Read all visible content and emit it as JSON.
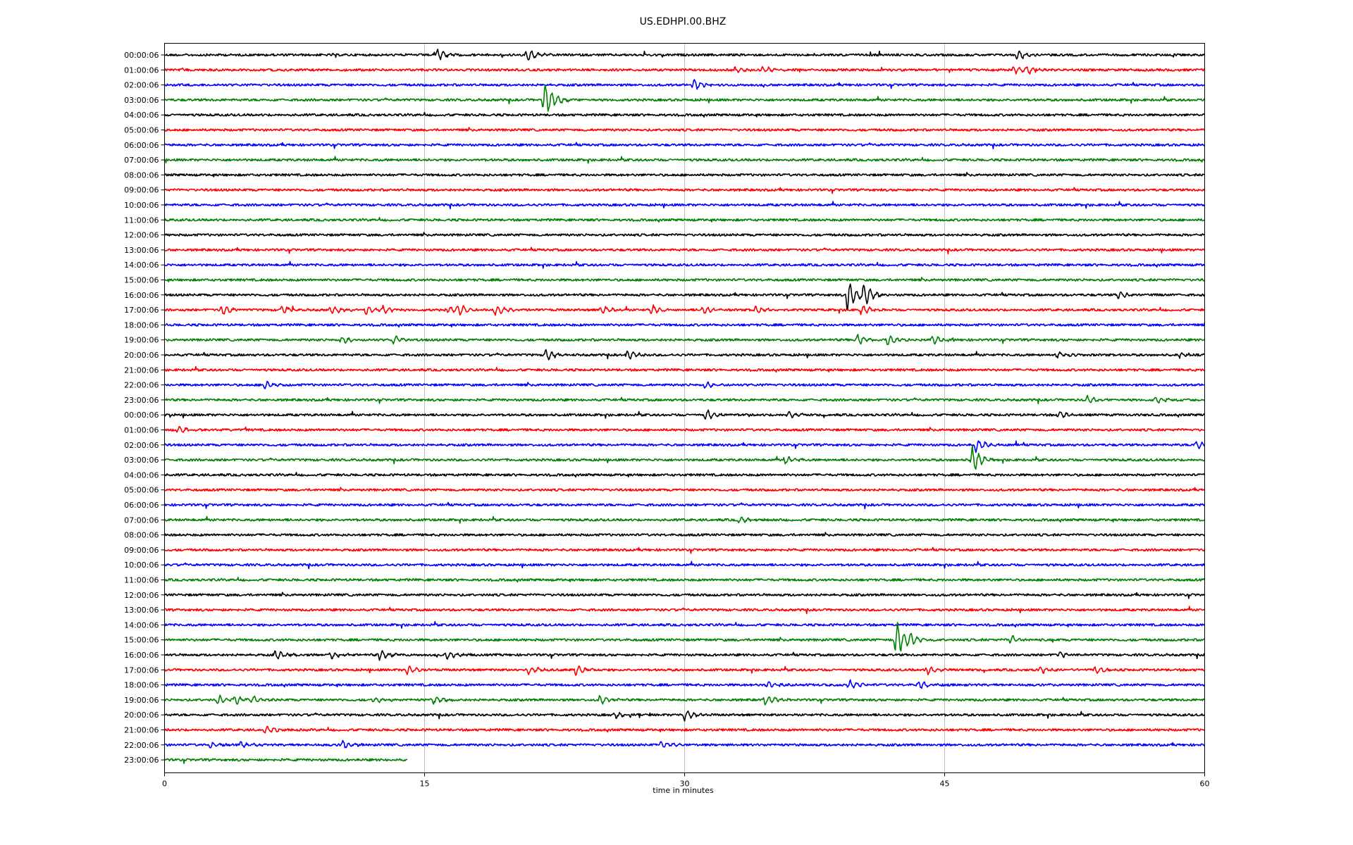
{
  "chart_data": {
    "type": "line",
    "title": "US.EDHPI.00.BHZ",
    "xlabel": "time in minutes",
    "ylabel": "",
    "xlim": [
      0,
      60
    ],
    "xticks": [
      "0",
      "15",
      "30",
      "45",
      "60"
    ],
    "grid": "vertical",
    "color_cycle": [
      "#000000",
      "#ff0000",
      "#0000ff",
      "#008000"
    ],
    "rows": [
      {
        "label": "00:00:06",
        "color": "#000000",
        "end_minute": 60,
        "events": [
          {
            "minute": 15.7,
            "amp": 0.45
          },
          {
            "minute": 20.9,
            "amp": 0.55
          },
          {
            "minute": 49.2,
            "amp": 0.4
          }
        ]
      },
      {
        "label": "01:00:06",
        "color": "#ff0000",
        "end_minute": 60,
        "events": [
          {
            "minute": 32.9,
            "amp": 0.3
          },
          {
            "minute": 34.5,
            "amp": 0.3
          },
          {
            "minute": 49.0,
            "amp": 0.35
          },
          {
            "minute": 49.8,
            "amp": 0.35
          }
        ]
      },
      {
        "label": "02:00:06",
        "color": "#0000ff",
        "end_minute": 60,
        "events": [
          {
            "minute": 30.5,
            "amp": 0.45
          }
        ]
      },
      {
        "label": "03:00:06",
        "color": "#008000",
        "end_minute": 60,
        "events": [
          {
            "minute": 21.9,
            "amp": 1.6
          }
        ]
      },
      {
        "label": "04:00:06",
        "color": "#000000",
        "end_minute": 60,
        "events": []
      },
      {
        "label": "05:00:06",
        "color": "#ff0000",
        "end_minute": 60,
        "events": []
      },
      {
        "label": "06:00:06",
        "color": "#0000ff",
        "end_minute": 60,
        "events": []
      },
      {
        "label": "07:00:06",
        "color": "#008000",
        "end_minute": 60,
        "events": []
      },
      {
        "label": "08:00:06",
        "color": "#000000",
        "end_minute": 60,
        "events": []
      },
      {
        "label": "09:00:06",
        "color": "#ff0000",
        "end_minute": 60,
        "events": []
      },
      {
        "label": "10:00:06",
        "color": "#0000ff",
        "end_minute": 60,
        "events": []
      },
      {
        "label": "11:00:06",
        "color": "#008000",
        "end_minute": 60,
        "events": []
      },
      {
        "label": "12:00:06",
        "color": "#000000",
        "end_minute": 60,
        "events": []
      },
      {
        "label": "13:00:06",
        "color": "#ff0000",
        "end_minute": 60,
        "events": []
      },
      {
        "label": "14:00:06",
        "color": "#0000ff",
        "end_minute": 60,
        "events": []
      },
      {
        "label": "15:00:06",
        "color": "#008000",
        "end_minute": 60,
        "events": []
      },
      {
        "label": "16:00:06",
        "color": "#000000",
        "end_minute": 60,
        "events": [
          {
            "minute": 39.4,
            "amp": 1.3
          },
          {
            "minute": 40.3,
            "amp": 0.9
          },
          {
            "minute": 55.0,
            "amp": 0.3
          }
        ]
      },
      {
        "label": "17:00:06",
        "color": "#ff0000",
        "end_minute": 60,
        "events": [
          {
            "minute": 3.3,
            "amp": 0.4
          },
          {
            "minute": 6.8,
            "amp": 0.3
          },
          {
            "minute": 9.6,
            "amp": 0.35
          },
          {
            "minute": 11.6,
            "amp": 0.35
          },
          {
            "minute": 12.6,
            "amp": 0.35
          },
          {
            "minute": 16.4,
            "amp": 0.35
          },
          {
            "minute": 17.0,
            "amp": 0.4
          },
          {
            "minute": 19.1,
            "amp": 0.5
          },
          {
            "minute": 25.2,
            "amp": 0.35
          },
          {
            "minute": 28.1,
            "amp": 0.4
          },
          {
            "minute": 31.1,
            "amp": 0.35
          },
          {
            "minute": 34.1,
            "amp": 0.35
          },
          {
            "minute": 40.2,
            "amp": 0.4
          }
        ]
      },
      {
        "label": "18:00:06",
        "color": "#0000ff",
        "end_minute": 60,
        "events": []
      },
      {
        "label": "19:00:06",
        "color": "#008000",
        "end_minute": 60,
        "events": [
          {
            "minute": 10.2,
            "amp": 0.35
          },
          {
            "minute": 13.2,
            "amp": 0.4
          },
          {
            "minute": 40.0,
            "amp": 0.4
          },
          {
            "minute": 41.7,
            "amp": 0.45
          },
          {
            "minute": 44.3,
            "amp": 0.4
          }
        ]
      },
      {
        "label": "20:00:06",
        "color": "#000000",
        "end_minute": 60,
        "events": [
          {
            "minute": 22.0,
            "amp": 0.45
          },
          {
            "minute": 26.7,
            "amp": 0.45
          },
          {
            "minute": 51.5,
            "amp": 0.25
          },
          {
            "minute": 58.5,
            "amp": 0.25
          }
        ]
      },
      {
        "label": "21:00:06",
        "color": "#ff0000",
        "end_minute": 60,
        "events": []
      },
      {
        "label": "22:00:06",
        "color": "#0000ff",
        "end_minute": 60,
        "events": [
          {
            "minute": 5.8,
            "amp": 0.35
          },
          {
            "minute": 31.2,
            "amp": 0.3
          }
        ]
      },
      {
        "label": "23:00:06",
        "color": "#008000",
        "end_minute": 60,
        "events": [
          {
            "minute": 53.2,
            "amp": 0.35
          },
          {
            "minute": 57.2,
            "amp": 0.35
          }
        ]
      },
      {
        "label": "00:00:06",
        "color": "#000000",
        "end_minute": 60,
        "events": [
          {
            "minute": 31.2,
            "amp": 0.45
          },
          {
            "minute": 36.0,
            "amp": 0.3
          },
          {
            "minute": 51.6,
            "amp": 0.35
          }
        ]
      },
      {
        "label": "01:00:06",
        "color": "#ff0000",
        "end_minute": 60,
        "events": [
          {
            "minute": 0.8,
            "amp": 0.35
          }
        ]
      },
      {
        "label": "02:00:06",
        "color": "#0000ff",
        "end_minute": 60,
        "events": [
          {
            "minute": 46.8,
            "amp": 0.6
          },
          {
            "minute": 59.5,
            "amp": 0.35
          }
        ]
      },
      {
        "label": "03:00:06",
        "color": "#008000",
        "end_minute": 60,
        "events": [
          {
            "minute": 35.8,
            "amp": 0.35
          },
          {
            "minute": 46.6,
            "amp": 1.1
          }
        ]
      },
      {
        "label": "04:00:06",
        "color": "#000000",
        "end_minute": 60,
        "events": []
      },
      {
        "label": "05:00:06",
        "color": "#ff0000",
        "end_minute": 60,
        "events": []
      },
      {
        "label": "06:00:06",
        "color": "#0000ff",
        "end_minute": 60,
        "events": []
      },
      {
        "label": "07:00:06",
        "color": "#008000",
        "end_minute": 60,
        "events": [
          {
            "minute": 33.2,
            "amp": 0.3
          }
        ]
      },
      {
        "label": "08:00:06",
        "color": "#000000",
        "end_minute": 60,
        "events": []
      },
      {
        "label": "09:00:06",
        "color": "#ff0000",
        "end_minute": 60,
        "events": []
      },
      {
        "label": "10:00:06",
        "color": "#0000ff",
        "end_minute": 60,
        "events": []
      },
      {
        "label": "11:00:06",
        "color": "#008000",
        "end_minute": 60,
        "events": []
      },
      {
        "label": "12:00:06",
        "color": "#000000",
        "end_minute": 60,
        "events": []
      },
      {
        "label": "13:00:06",
        "color": "#ff0000",
        "end_minute": 60,
        "events": []
      },
      {
        "label": "14:00:06",
        "color": "#0000ff",
        "end_minute": 60,
        "events": []
      },
      {
        "label": "15:00:06",
        "color": "#008000",
        "end_minute": 60,
        "events": [
          {
            "minute": 42.2,
            "amp": 1.4
          },
          {
            "minute": 43.0,
            "amp": 0.4
          },
          {
            "minute": 48.8,
            "amp": 0.4
          }
        ]
      },
      {
        "label": "16:00:06",
        "color": "#000000",
        "end_minute": 60,
        "events": [
          {
            "minute": 6.4,
            "amp": 0.4
          },
          {
            "minute": 9.6,
            "amp": 0.3
          },
          {
            "minute": 12.4,
            "amp": 0.4
          },
          {
            "minute": 16.3,
            "amp": 0.35
          },
          {
            "minute": 51.6,
            "amp": 0.3
          }
        ]
      },
      {
        "label": "17:00:06",
        "color": "#ff0000",
        "end_minute": 60,
        "events": [
          {
            "minute": 14.0,
            "amp": 0.35
          },
          {
            "minute": 21.0,
            "amp": 0.35
          },
          {
            "minute": 23.7,
            "amp": 0.4
          },
          {
            "minute": 44.0,
            "amp": 0.35
          },
          {
            "minute": 50.5,
            "amp": 0.35
          },
          {
            "minute": 53.7,
            "amp": 0.35
          }
        ]
      },
      {
        "label": "18:00:06",
        "color": "#0000ff",
        "end_minute": 60,
        "events": [
          {
            "minute": 34.8,
            "amp": 0.35
          },
          {
            "minute": 39.5,
            "amp": 0.45
          },
          {
            "minute": 43.5,
            "amp": 0.35
          }
        ]
      },
      {
        "label": "19:00:06",
        "color": "#008000",
        "end_minute": 60,
        "events": [
          {
            "minute": 3.1,
            "amp": 0.4
          },
          {
            "minute": 4.1,
            "amp": 0.35
          },
          {
            "minute": 5.1,
            "amp": 0.3
          },
          {
            "minute": 12.1,
            "amp": 0.3
          },
          {
            "minute": 15.5,
            "amp": 0.35
          },
          {
            "minute": 25.1,
            "amp": 0.4
          },
          {
            "minute": 34.6,
            "amp": 0.45
          }
        ]
      },
      {
        "label": "20:00:06",
        "color": "#000000",
        "end_minute": 60,
        "events": [
          {
            "minute": 26.0,
            "amp": 0.3
          },
          {
            "minute": 30.0,
            "amp": 0.45
          }
        ]
      },
      {
        "label": "21:00:06",
        "color": "#ff0000",
        "end_minute": 60,
        "events": [
          {
            "minute": 5.8,
            "amp": 0.3
          }
        ]
      },
      {
        "label": "22:00:06",
        "color": "#0000ff",
        "end_minute": 60,
        "events": [
          {
            "minute": 2.6,
            "amp": 0.3
          },
          {
            "minute": 4.4,
            "amp": 0.3
          },
          {
            "minute": 10.3,
            "amp": 0.3
          },
          {
            "minute": 28.6,
            "amp": 0.35
          }
        ]
      },
      {
        "label": "23:00:06",
        "color": "#008000",
        "end_minute": 14,
        "events": []
      }
    ]
  }
}
